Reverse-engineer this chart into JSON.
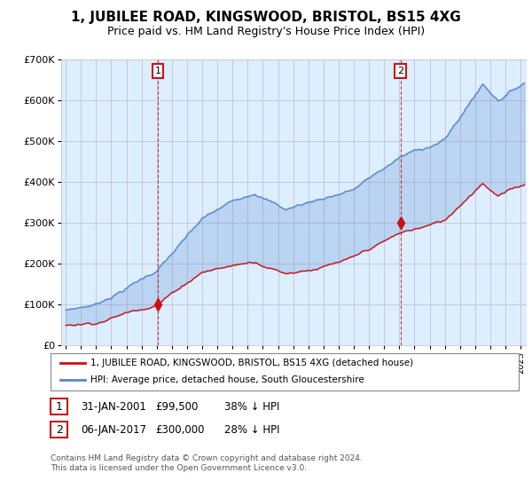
{
  "title": "1, JUBILEE ROAD, KINGSWOOD, BRISTOL, BS15 4XG",
  "subtitle": "Price paid vs. HM Land Registry's House Price Index (HPI)",
  "title_fontsize": 11,
  "subtitle_fontsize": 9,
  "background_color": "#ffffff",
  "plot_bg_color": "#ddeeff",
  "grid_color": "#bbbbcc",
  "hpi_color": "#5588cc",
  "price_color": "#cc1111",
  "sale1_date": "31-JAN-2001",
  "sale1_price": "£99,500",
  "sale1_hpi": "38% ↓ HPI",
  "sale2_date": "06-JAN-2017",
  "sale2_price": "£300,000",
  "sale2_hpi": "28% ↓ HPI",
  "legend_line1": "1, JUBILEE ROAD, KINGSWOOD, BRISTOL, BS15 4XG (detached house)",
  "legend_line2": "HPI: Average price, detached house, South Gloucestershire",
  "footer": "Contains HM Land Registry data © Crown copyright and database right 2024.\nThis data is licensed under the Open Government Licence v3.0.",
  "ylim": [
    0,
    700000
  ],
  "yticks": [
    0,
    100000,
    200000,
    300000,
    400000,
    500000,
    600000,
    700000
  ],
  "ytick_labels": [
    "£0",
    "£100K",
    "£200K",
    "£300K",
    "£400K",
    "£500K",
    "£600K",
    "£700K"
  ]
}
